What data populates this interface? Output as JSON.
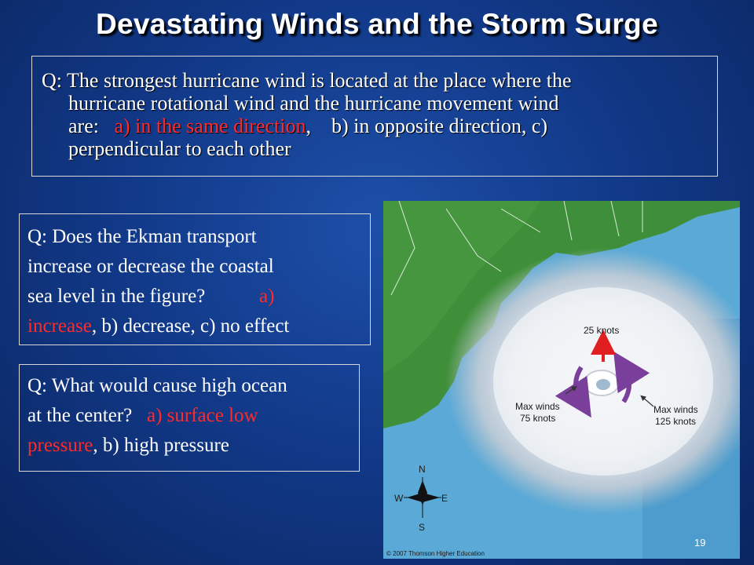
{
  "slide": {
    "title": "Devastating Winds and the Storm Surge",
    "page_number": "19"
  },
  "question1": {
    "line1": "Q: The strongest hurricane wind is located at the place where the",
    "line2": "hurricane rotational wind and the hurricane movement wind",
    "line3_prefix": "are:   ",
    "answer_correct": "a) in the same direction",
    "line3_suffix": ",    b) in opposite direction, c)",
    "line4": "perpendicular to each other"
  },
  "question2": {
    "line1": "Q: Does the Ekman transport",
    "line2": "increase or decrease the coastal",
    "line3_prefix": "sea level in the figure?           ",
    "answer_correct_a": "a)",
    "answer_correct_b": "increase",
    "line4_suffix": ", b) decrease, c) no effect"
  },
  "question3": {
    "line1": "Q: What would cause high ocean",
    "line2_prefix": "at the center?   ",
    "answer_correct_a": "a) surface low",
    "answer_correct_b": "pressure",
    "line3_suffix": ", b) high pressure"
  },
  "figure": {
    "label_movement": "25 knots",
    "label_left_1": "Max winds",
    "label_left_2": "75 knots",
    "label_right_1": "Max winds",
    "label_right_2": "125 knots",
    "compass_n": "N",
    "compass_s": "S",
    "compass_e": "E",
    "compass_w": "W",
    "copyright": "© 2007 Thomson Higher Education",
    "colors": {
      "ocean": "#5aa9d6",
      "land": "#3f8f3a",
      "rotation_arrow": "#7a3f9a",
      "movement_arrow": "#e02020"
    }
  }
}
